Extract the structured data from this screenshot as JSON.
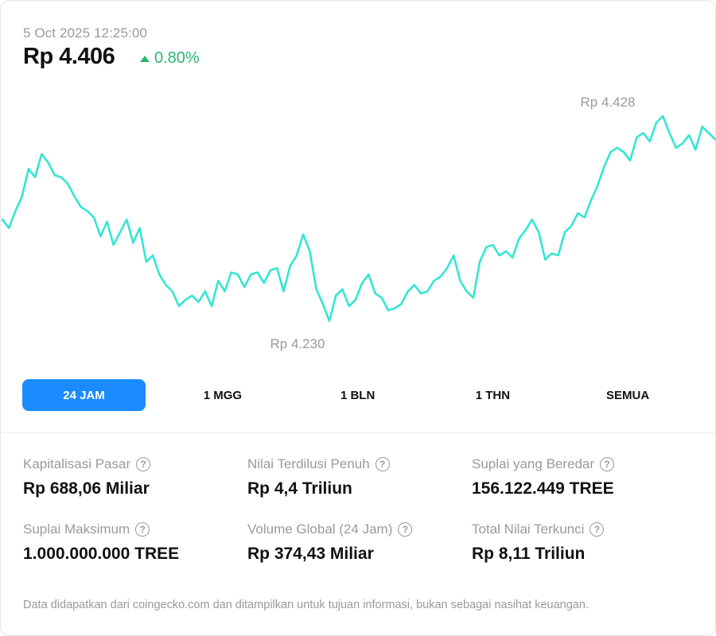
{
  "header": {
    "timestamp": "5 Oct 2025 12:25:00",
    "price": "Rp 4.406",
    "change": "0.80%"
  },
  "colors": {
    "line": "#2ee6d2",
    "positive": "#2bb673",
    "accent": "#1a8cff",
    "muted": "#9a9a9a"
  },
  "chart_data": {
    "type": "line",
    "max_label": "Rp 4.428",
    "min_label": "Rp 4.230",
    "ylim": [
      4230,
      4428
    ],
    "series": [
      {
        "values": [
          4330,
          4322,
          4338,
          4352,
          4378,
          4370,
          4392,
          4384,
          4372,
          4370,
          4364,
          4352,
          4342,
          4338,
          4332,
          4314,
          4328,
          4306,
          4318,
          4330,
          4308,
          4322,
          4290,
          4296,
          4278,
          4268,
          4262,
          4248,
          4254,
          4258,
          4252,
          4262,
          4248,
          4272,
          4262,
          4280,
          4278,
          4266,
          4278,
          4280,
          4270,
          4282,
          4284,
          4262,
          4286,
          4296,
          4316,
          4300,
          4264,
          4250,
          4234,
          4258,
          4264,
          4248,
          4254,
          4270,
          4278,
          4260,
          4256,
          4244,
          4246,
          4250,
          4262,
          4268,
          4260,
          4262,
          4272,
          4276,
          4284,
          4296,
          4272,
          4262,
          4256,
          4290,
          4304,
          4306,
          4296,
          4300,
          4294,
          4312,
          4320,
          4330,
          4318,
          4292,
          4298,
          4296,
          4318,
          4324,
          4336,
          4332,
          4348,
          4362,
          4380,
          4394,
          4398,
          4394,
          4386,
          4408,
          4412,
          4404,
          4422,
          4428,
          4412,
          4398,
          4402,
          4410,
          4396,
          4418,
          4412,
          4406
        ]
      }
    ]
  },
  "tabs": [
    "24 JAM",
    "1 MGG",
    "1 BLN",
    "1 THN",
    "SEMUA"
  ],
  "stats": [
    {
      "label": "Kapitalisasi Pasar",
      "value": "Rp 688,06 Miliar"
    },
    {
      "label": "Nilai Terdilusi Penuh",
      "value": "Rp 4,4 Triliun"
    },
    {
      "label": "Suplai yang Beredar",
      "value": "156.122.449 TREE"
    },
    {
      "label": "Suplai Maksimum",
      "value": "1.000.000.000 TREE"
    },
    {
      "label": "Volume Global (24 Jam)",
      "value": "Rp 374,43 Miliar"
    },
    {
      "label": "Total Nilai Terkunci",
      "value": "Rp 8,11 Triliun"
    }
  ],
  "help_glyph": "?",
  "footer": {
    "disclaimer": "Data didapatkan dari coingecko.com dan ditampilkan untuk tujuan informasi, bukan sebagai nasihat keuangan."
  }
}
